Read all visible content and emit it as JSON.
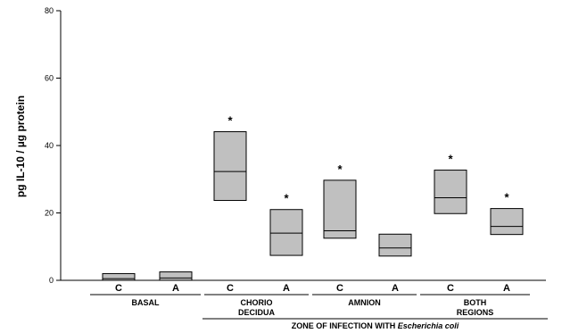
{
  "chart_data": {
    "type": "box",
    "ylabel": "pg IL-10 / µg protein",
    "ylim": [
      0,
      80
    ],
    "yticks": [
      "0",
      "20",
      "40",
      "60",
      "80"
    ],
    "categories": [
      "C",
      "A",
      "C",
      "A",
      "C",
      "A",
      "C",
      "A"
    ],
    "boxes": [
      {
        "label": "C",
        "q1": 0,
        "median": 0.5,
        "q3": 2,
        "significant": false
      },
      {
        "label": "A",
        "q1": 0,
        "median": 0.7,
        "q3": 2.5,
        "significant": false
      },
      {
        "label": "C",
        "q1": 23.7,
        "median": 32.3,
        "q3": 44.1,
        "significant": true
      },
      {
        "label": "A",
        "q1": 7.4,
        "median": 14,
        "q3": 21,
        "significant": true
      },
      {
        "label": "C",
        "q1": 12.5,
        "median": 14.7,
        "q3": 29.7,
        "significant": true
      },
      {
        "label": "A",
        "q1": 7.2,
        "median": 9.6,
        "q3": 13.7,
        "significant": false
      },
      {
        "label": "C",
        "q1": 19.8,
        "median": 24.5,
        "q3": 32.7,
        "significant": true
      },
      {
        "label": "A",
        "q1": 13.6,
        "median": 16,
        "q3": 21.3,
        "significant": true
      }
    ],
    "groups": [
      {
        "label": "BASAL",
        "lines": [
          "BASAL"
        ]
      },
      {
        "label": "CHORIO DECIDUA",
        "lines": [
          "CHORIO",
          "DECIDUA"
        ]
      },
      {
        "label": "AMNION",
        "lines": [
          "AMNION"
        ]
      },
      {
        "label": "BOTH REGIONS",
        "lines": [
          "BOTH",
          "REGIONS"
        ]
      }
    ],
    "zone_label": {
      "prefix": "ZONE OF INFECTION WITH ",
      "italic": "Escherichia coli"
    },
    "significance_marker": "*",
    "colors": {
      "box_fill": "#c0c0c0",
      "box_stroke": "#000000",
      "axis": "#000000"
    }
  }
}
